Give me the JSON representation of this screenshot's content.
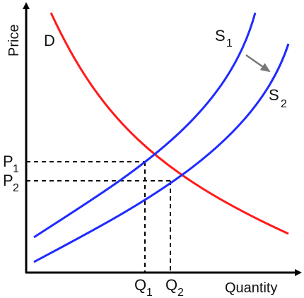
{
  "diagram": {
    "axes": {
      "y_title": "Price",
      "x_title": "Quantity"
    },
    "curves": {
      "demand": {
        "label": "D",
        "color": "#ff1a1a"
      },
      "supply_1": {
        "label": "S",
        "sub": "1",
        "color": "#1f2bff"
      },
      "supply_2": {
        "label": "S",
        "sub": "2",
        "color": "#1f2bff"
      }
    },
    "shift_arrow_color": "#777777",
    "prices": {
      "p1": {
        "label": "P",
        "sub": "1"
      },
      "p2": {
        "label": "P",
        "sub": "2"
      }
    },
    "quantities": {
      "q1": {
        "label": "Q",
        "sub": "1"
      },
      "q2": {
        "label": "Q",
        "sub": "2"
      }
    }
  }
}
